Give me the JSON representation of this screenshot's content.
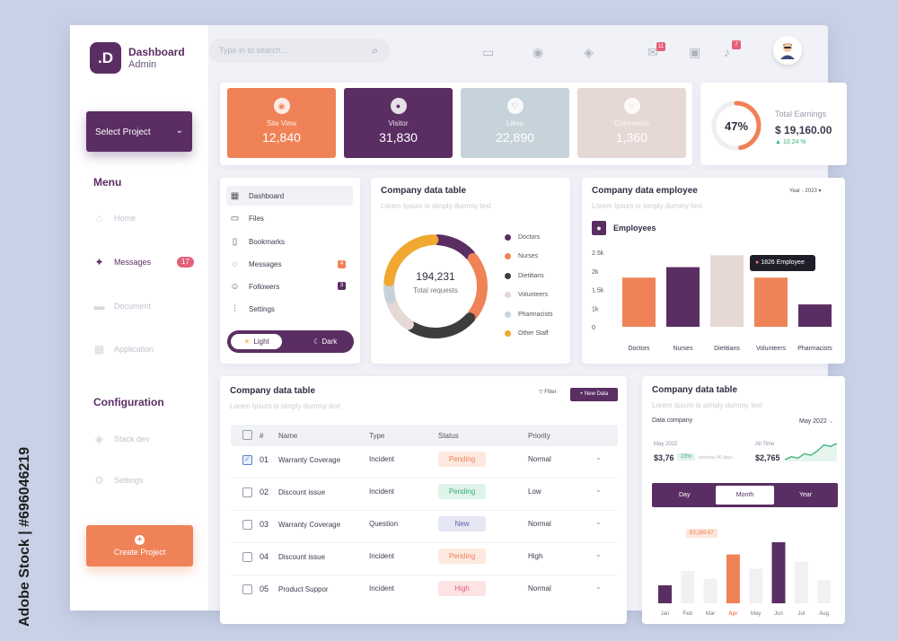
{
  "brand": {
    "logo": ".D",
    "title": "Dashboard",
    "subtitle": "Admin"
  },
  "sidebar": {
    "select_project": "Select Project",
    "menu_title": "Menu",
    "menu": [
      {
        "label": "Home",
        "icon": "home-icon"
      },
      {
        "label": "Messages",
        "icon": "compass-icon",
        "badge": "17"
      },
      {
        "label": "Document",
        "icon": "folder-icon"
      },
      {
        "label": "Application",
        "icon": "grid-icon"
      }
    ],
    "config_title": "Configuration",
    "config": [
      {
        "label": "Stack dev",
        "icon": "layers-icon"
      },
      {
        "label": "Settings",
        "icon": "gear-icon"
      }
    ],
    "create_project": "Create Project"
  },
  "header": {
    "search_placeholder": "Type in to search...",
    "mail_badge": "11",
    "bell_badge": "7"
  },
  "stats": [
    {
      "label": "Site View",
      "value": "12,840",
      "color": "#f08257",
      "icon": "eye-icon"
    },
    {
      "label": "Visitor",
      "value": "31,830",
      "color": "#5b2e63",
      "icon": "user-icon"
    },
    {
      "label": "Likes",
      "value": "22,890",
      "color": "#c6d3da",
      "icon": "heart-icon"
    },
    {
      "label": "Comments",
      "value": "1,360",
      "color": "#e6d8d5",
      "icon": "comment-icon"
    }
  ],
  "earnings": {
    "percent": "47%",
    "percent_value": 0.47,
    "label": "Total Earnings",
    "value": "$ 19,160.00",
    "change": "▲ 10,24 %"
  },
  "quick_menu": {
    "items": [
      {
        "label": "Dashboard",
        "icon": "grid-icon"
      },
      {
        "label": "Files",
        "icon": "folder-icon"
      },
      {
        "label": "Bookmarks",
        "icon": "bookmark-icon"
      },
      {
        "label": "Messages",
        "icon": "chat-icon",
        "badge": "4"
      },
      {
        "label": "Followers",
        "icon": "users-icon",
        "badge": "3"
      },
      {
        "label": "Settings",
        "icon": "sliders-icon"
      }
    ],
    "theme_light": "Light",
    "theme_dark": "Dark"
  },
  "donut": {
    "title": "Company data table",
    "subtitle": "Lorem Ipsum is simply dummy text",
    "total": "194,231",
    "total_label": "Total requests"
  },
  "employee": {
    "title": "Company data employee",
    "subtitle": "Lorem Ipsum is simply dummy text",
    "year": "Year - 2023",
    "legend": "Employees",
    "tooltip": "1826 Employee"
  },
  "table": {
    "title": "Company data table",
    "subtitle": "Lorem Ipsum is simply dummy text",
    "filter": "Filter",
    "new_data": "+ New Data",
    "columns": [
      "#",
      "Name",
      "Type",
      "Status",
      "Priority"
    ],
    "rows": [
      {
        "num": "01",
        "name": "Warranty Coverage",
        "type": "Incident",
        "status": "Pending",
        "priority": "Normal"
      },
      {
        "num": "02",
        "name": "Discount issue",
        "type": "Incident",
        "status": "Pending",
        "priority": "Low"
      },
      {
        "num": "03",
        "name": "Warranty Coverage",
        "type": "Question",
        "status": "New",
        "priority": "Normal"
      },
      {
        "num": "04",
        "name": "Discount issue",
        "type": "Incident",
        "status": "Pending",
        "priority": "High"
      },
      {
        "num": "05",
        "name": "Product Suppor",
        "type": "Incident",
        "status": "High",
        "priority": "Normal"
      }
    ]
  },
  "monthly": {
    "title": "Company data table",
    "subtitle": "Lorem Ipsum is simply dummy text",
    "company_label": "Data company",
    "month_select": "May 2022",
    "left_label": "May 2022",
    "left_value": "$3,76",
    "left_pill": "23%",
    "left_note": "previous 40 days",
    "right_label": "All Time",
    "right_value": "$2,765",
    "tabs": [
      "Day",
      "Month",
      "Year"
    ],
    "tooltip": "$3,389.67"
  },
  "chart_data": [
    {
      "type": "pie",
      "categories": [
        "Doctors",
        "Nurses",
        "Dietitians",
        "Volunteers",
        "Pharmacists",
        "Other Staff"
      ],
      "values": [
        14,
        22,
        23,
        11,
        6,
        24
      ],
      "colors": [
        "#5b2e63",
        "#f08257",
        "#3d3d3d",
        "#e6d8d5",
        "#c6d3da",
        "#f0a830"
      ],
      "note": "donut"
    },
    {
      "type": "bar",
      "categories": [
        "Doctors",
        "Nurses",
        "Dietitians",
        "Volunteers",
        "Pharmacists"
      ],
      "values": [
        1650,
        2000,
        2400,
        1650,
        750
      ],
      "colors": [
        "#f08257",
        "#5b2e63",
        "#e6d8d5",
        "#f08257",
        "#5b2e63"
      ],
      "yticks": [
        "2.5k",
        "2k",
        "1.5k",
        "1k",
        "0"
      ],
      "ylim": [
        0,
        2500
      ]
    },
    {
      "type": "bar",
      "categories": [
        "Jan",
        "Feb",
        "Mar",
        "Apr",
        "May",
        "Jun",
        "Jul",
        "Aug"
      ],
      "values": [
        25,
        45,
        34,
        68,
        48,
        85,
        58,
        32
      ],
      "colors": [
        "#5b2e63",
        "#f1f1f4",
        "#f1f1f4",
        "#f08257",
        "#f1f1f4",
        "#5b2e63",
        "#f1f1f4",
        "#f1f1f4"
      ],
      "highlight": "Apr",
      "ylim": [
        0,
        100
      ]
    },
    {
      "type": "line",
      "x": [
        0,
        1,
        2,
        3,
        4,
        5,
        6,
        7,
        8
      ],
      "values": [
        2,
        3,
        2.5,
        4,
        3.5,
        5,
        7,
        6.5,
        7.5
      ],
      "color": "#39b07a"
    }
  ]
}
